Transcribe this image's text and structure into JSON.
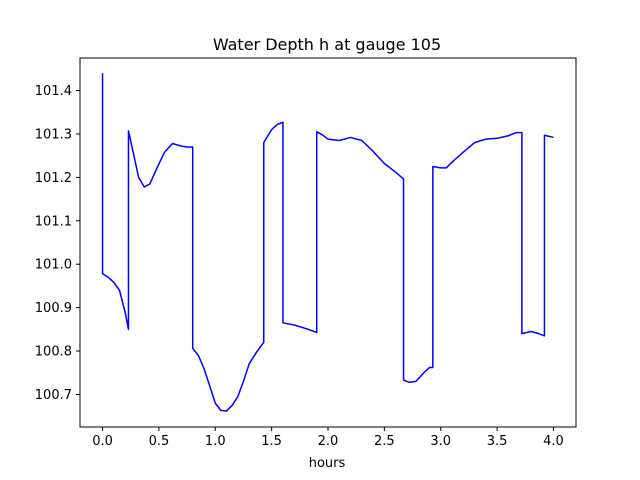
{
  "chart_data": {
    "type": "line",
    "title": "Water Depth h at gauge 105",
    "xlabel": "hours",
    "ylabel": "",
    "xlim": [
      -0.2,
      4.2
    ],
    "ylim": [
      100.625,
      101.475
    ],
    "xticks": [
      0.0,
      0.5,
      1.0,
      1.5,
      2.0,
      2.5,
      3.0,
      3.5,
      4.0
    ],
    "xtick_labels": [
      "0.0",
      "0.5",
      "1.0",
      "1.5",
      "2.0",
      "2.5",
      "3.0",
      "3.5",
      "4.0"
    ],
    "yticks": [
      100.7,
      100.8,
      100.9,
      101.0,
      101.1,
      101.2,
      101.3,
      101.4
    ],
    "ytick_labels": [
      "100.7",
      "100.8",
      "100.9",
      "101.0",
      "101.1",
      "101.2",
      "101.3",
      "101.4"
    ],
    "grid": false,
    "series": [
      {
        "color": "#0000ff",
        "x": [
          0.0,
          0.0,
          0.05,
          0.1,
          0.15,
          0.2,
          0.23,
          0.23,
          0.27,
          0.32,
          0.37,
          0.42,
          0.48,
          0.55,
          0.62,
          0.7,
          0.75,
          0.8,
          0.8,
          0.85,
          0.9,
          0.95,
          1.0,
          1.05,
          1.1,
          1.15,
          1.2,
          1.25,
          1.3,
          1.36,
          1.43,
          1.43,
          1.5,
          1.55,
          1.6,
          1.6,
          1.7,
          1.8,
          1.9,
          1.9,
          1.95,
          2.0,
          2.1,
          2.2,
          2.3,
          2.4,
          2.5,
          2.6,
          2.67,
          2.67,
          2.72,
          2.78,
          2.85,
          2.9,
          2.93,
          2.93,
          3.0,
          3.05,
          3.1,
          3.2,
          3.3,
          3.4,
          3.5,
          3.6,
          3.67,
          3.72,
          3.72,
          3.8,
          3.87,
          3.92,
          3.92,
          4.0
        ],
        "y": [
          101.44,
          100.978,
          100.97,
          100.958,
          100.94,
          100.89,
          100.85,
          101.307,
          101.26,
          101.2,
          101.178,
          101.185,
          101.22,
          101.258,
          101.278,
          101.272,
          101.27,
          101.27,
          100.806,
          100.79,
          100.76,
          100.72,
          100.68,
          100.663,
          100.662,
          100.675,
          100.695,
          100.73,
          100.77,
          100.795,
          100.82,
          101.28,
          101.31,
          101.322,
          101.327,
          100.865,
          100.86,
          100.852,
          100.843,
          101.305,
          101.298,
          101.288,
          101.285,
          101.292,
          101.285,
          101.26,
          101.232,
          101.212,
          101.196,
          100.733,
          100.728,
          100.73,
          100.75,
          100.762,
          100.762,
          101.225,
          101.222,
          101.222,
          101.235,
          101.258,
          101.28,
          101.288,
          101.29,
          101.296,
          101.303,
          101.303,
          100.84,
          100.845,
          100.84,
          100.835,
          101.297,
          101.292
        ]
      }
    ]
  }
}
